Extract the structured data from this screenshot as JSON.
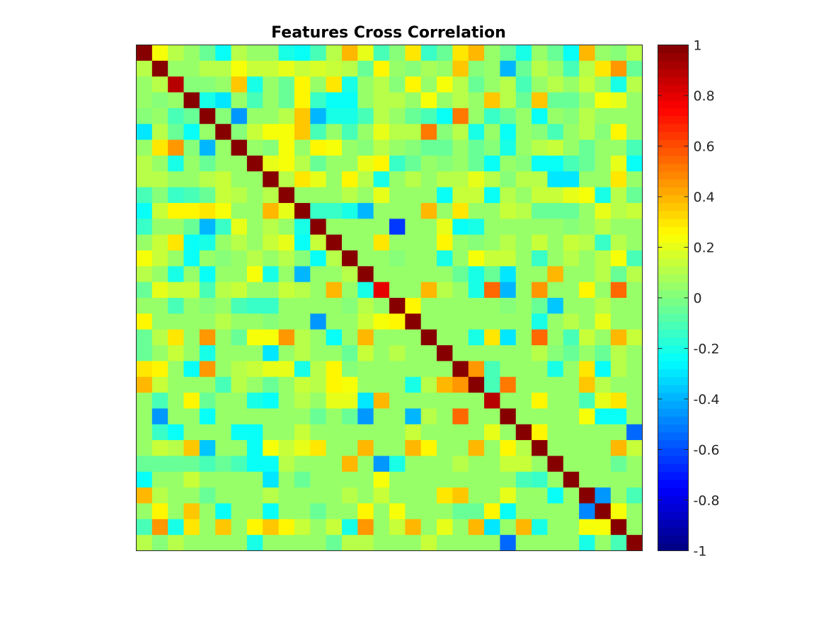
{
  "chart_data": {
    "type": "heatmap",
    "title": "Features Cross Correlation",
    "size": 32,
    "colormap": "jet",
    "clim": [
      -1,
      1
    ],
    "colorbar": {
      "ticks": [
        1,
        0.8,
        0.6,
        0.4,
        0.2,
        0,
        -0.2,
        -0.4,
        -0.6,
        -0.8,
        -1
      ],
      "tick_labels": [
        "1",
        "0.8",
        "0.6",
        "0.4",
        "0.2",
        "0",
        "-0.2",
        "-0.4",
        "-0.6",
        "-0.8",
        "-1"
      ]
    },
    "xticks": "none",
    "yticks": "none",
    "matrix": [
      [
        1.0,
        0.22,
        0.1,
        0.05,
        -0.05,
        -0.25,
        0.1,
        0.05,
        0.05,
        -0.2,
        -0.25,
        -0.1,
        0.1,
        0.38,
        0.2,
        -0.1,
        0.0,
        0.3,
        -0.15,
        -0.05,
        0.3,
        0.4,
        0.05,
        -0.05,
        -0.2,
        0.05,
        -0.05,
        -0.25,
        0.38,
        0.05,
        0.0,
        0.12
      ],
      [
        0.12,
        1.0,
        0.05,
        0.05,
        0.1,
        0.12,
        0.22,
        0.15,
        0.15,
        0.2,
        0.15,
        0.18,
        0.15,
        0.1,
        -0.05,
        0.25,
        0.05,
        0.0,
        0.08,
        0.05,
        0.35,
        0.0,
        0.05,
        -0.4,
        -0.05,
        0.12,
        0.05,
        -0.1,
        0.1,
        0.3,
        0.45,
        -0.05
      ],
      [
        0.05,
        0.1,
        0.9,
        0.0,
        0.0,
        0.05,
        0.35,
        -0.2,
        0.05,
        -0.05,
        0.25,
        0.05,
        0.3,
        -0.2,
        0.05,
        0.1,
        0.0,
        0.25,
        0.05,
        0.22,
        0.12,
        -0.05,
        0.05,
        0.12,
        -0.1,
        0.05,
        0.1,
        0.05,
        0.15,
        0.05,
        -0.2,
        0.12
      ],
      [
        0.05,
        0.0,
        0.05,
        1.0,
        -0.2,
        -0.3,
        0.05,
        -0.1,
        0.05,
        -0.05,
        0.25,
        -0.15,
        -0.25,
        -0.25,
        0.05,
        0.1,
        0.12,
        0.05,
        0.22,
        0.05,
        0.1,
        0.05,
        0.35,
        0.1,
        -0.05,
        0.35,
        -0.05,
        -0.05,
        0.05,
        0.22,
        0.2,
        0.05
      ],
      [
        0.0,
        0.05,
        -0.1,
        -0.05,
        1.0,
        0.0,
        -0.45,
        0.05,
        0.05,
        0.1,
        0.35,
        -0.4,
        -0.2,
        -0.2,
        -0.1,
        0.1,
        0.05,
        -0.05,
        -0.1,
        -0.25,
        0.5,
        0.05,
        -0.15,
        -0.05,
        0.05,
        -0.25,
        0.05,
        0.0,
        0.1,
        0.05,
        0.05,
        0.05
      ],
      [
        -0.3,
        0.1,
        -0.05,
        -0.25,
        0.05,
        1.0,
        0.0,
        0.15,
        0.22,
        0.22,
        0.35,
        -0.1,
        0.05,
        -0.1,
        0.05,
        0.2,
        0.12,
        0.1,
        0.5,
        0.0,
        0.1,
        -0.2,
        0.05,
        -0.25,
        0.05,
        0.0,
        -0.1,
        0.05,
        0.1,
        0.0,
        0.25,
        0.05
      ],
      [
        0.05,
        0.3,
        0.45,
        0.0,
        -0.4,
        0.05,
        1.0,
        0.05,
        0.0,
        0.22,
        0.05,
        0.25,
        0.22,
        0.05,
        0.0,
        0.1,
        0.05,
        0.0,
        -0.05,
        -0.05,
        0.05,
        -0.05,
        0.0,
        -0.2,
        0.05,
        0.1,
        0.15,
        0.05,
        -0.05,
        0.05,
        0.05,
        -0.1
      ],
      [
        0.1,
        0.05,
        -0.2,
        0.05,
        -0.05,
        0.05,
        0.05,
        1.0,
        0.2,
        0.22,
        0.1,
        -0.05,
        0.05,
        0.05,
        0.2,
        0.25,
        -0.15,
        -0.05,
        0.05,
        0.0,
        0.05,
        -0.05,
        -0.25,
        0.05,
        0.0,
        -0.25,
        -0.25,
        -0.1,
        -0.05,
        0.05,
        0.2,
        -0.25
      ],
      [
        0.1,
        0.1,
        0.05,
        0.05,
        0.1,
        0.15,
        0.05,
        0.05,
        1.0,
        0.1,
        0.3,
        0.2,
        0.05,
        0.25,
        0.1,
        -0.2,
        0.05,
        0.1,
        0.05,
        0.1,
        0.12,
        0.2,
        0.1,
        0.0,
        0.12,
        0.1,
        -0.3,
        -0.3,
        0.05,
        0.05,
        0.3,
        0.05
      ],
      [
        -0.1,
        0.0,
        -0.15,
        -0.1,
        -0.05,
        0.15,
        0.1,
        0.05,
        0.1,
        1.0,
        0.05,
        0.05,
        0.05,
        0.1,
        0.05,
        0.2,
        0.05,
        0.05,
        0.05,
        -0.25,
        0.15,
        0.15,
        -0.25,
        0.1,
        0.05,
        0.15,
        0.15,
        0.2,
        0.22,
        -0.2,
        0.1,
        -0.05
      ],
      [
        -0.25,
        0.15,
        0.25,
        0.25,
        0.3,
        0.22,
        0.05,
        0.05,
        0.38,
        0.2,
        1.0,
        -0.15,
        -0.15,
        -0.2,
        -0.4,
        0.05,
        0.05,
        0.05,
        0.38,
        0.05,
        0.3,
        0.05,
        0.05,
        0.15,
        0.1,
        -0.05,
        -0.05,
        -0.05,
        0.05,
        0.2,
        0.12,
        0.15
      ],
      [
        -0.15,
        0.05,
        0.05,
        -0.05,
        -0.4,
        -0.15,
        0.2,
        0.05,
        0.1,
        0.05,
        -0.2,
        1.0,
        0.05,
        0.05,
        0.05,
        0.05,
        -0.65,
        0.05,
        0.05,
        0.2,
        -0.25,
        -0.2,
        0.05,
        0.05,
        0.05,
        0.05,
        0.05,
        0.0,
        0.05,
        0.1,
        0.05,
        0.05
      ],
      [
        0.05,
        0.15,
        0.3,
        -0.25,
        -0.2,
        0.05,
        0.12,
        0.05,
        0.15,
        0.2,
        -0.25,
        0.15,
        1.0,
        0.05,
        0.05,
        0.3,
        0.05,
        0.05,
        0.05,
        0.25,
        0.05,
        0.0,
        0.05,
        0.1,
        0.05,
        0.15,
        0.05,
        0.15,
        0.1,
        -0.15,
        0.1,
        0.05
      ],
      [
        0.22,
        0.15,
        0.05,
        -0.25,
        0.05,
        0.0,
        0.05,
        0.1,
        0.05,
        0.1,
        0.0,
        -0.25,
        0.1,
        1.0,
        0.05,
        0.05,
        0.0,
        0.05,
        0.05,
        -0.2,
        0.05,
        0.22,
        0.15,
        0.15,
        0.05,
        -0.15,
        0.05,
        0.1,
        0.05,
        0.1,
        0.22,
        -0.1
      ],
      [
        0.12,
        0.05,
        -0.2,
        0.05,
        -0.25,
        0.05,
        0.05,
        0.22,
        -0.2,
        0.05,
        -0.4,
        0.05,
        0.05,
        0.1,
        1.0,
        0.05,
        0.05,
        0.05,
        0.05,
        0.05,
        -0.05,
        -0.2,
        -0.05,
        -0.3,
        0.05,
        0.05,
        0.38,
        0.05,
        0.05,
        0.1,
        -0.05,
        0.12
      ],
      [
        -0.05,
        0.2,
        0.15,
        0.15,
        -0.1,
        0.1,
        0.15,
        0.05,
        0.05,
        0.15,
        0.1,
        0.05,
        0.38,
        0.05,
        -0.2,
        0.8,
        0.05,
        0.05,
        0.38,
        0.1,
        0.05,
        -0.2,
        0.55,
        -0.4,
        0.05,
        0.45,
        0.05,
        0.05,
        0.25,
        0.05,
        0.55,
        0.05
      ],
      [
        0.05,
        0.05,
        -0.1,
        0.05,
        0.0,
        0.05,
        -0.1,
        -0.15,
        -0.15,
        0.05,
        0.05,
        0.05,
        0.05,
        0.0,
        0.12,
        0.05,
        1.0,
        0.25,
        0.05,
        0.05,
        0.05,
        0.05,
        0.05,
        0.0,
        0.05,
        -0.05,
        -0.35,
        0.05,
        0.05,
        0.1,
        0.05,
        0.05
      ],
      [
        0.25,
        0.05,
        0.05,
        0.05,
        0.05,
        0.12,
        0.05,
        0.05,
        0.0,
        0.05,
        0.05,
        -0.45,
        0.05,
        0.05,
        0.15,
        0.22,
        0.25,
        1.0,
        0.05,
        0.05,
        0.05,
        0.05,
        0.05,
        0.05,
        0.05,
        -0.2,
        0.05,
        0.1,
        0.05,
        0.2,
        0.05,
        0.05
      ],
      [
        -0.05,
        0.1,
        0.3,
        0.05,
        0.45,
        0.05,
        -0.05,
        0.22,
        0.22,
        0.45,
        0.1,
        0.05,
        -0.25,
        0.05,
        0.38,
        0.05,
        0.05,
        0.05,
        1.0,
        0.05,
        0.05,
        -0.2,
        0.3,
        -0.3,
        0.05,
        0.55,
        0.05,
        -0.1,
        0.15,
        0.05,
        0.38,
        0.15
      ],
      [
        -0.05,
        0.05,
        0.15,
        0.05,
        -0.2,
        0.05,
        0.05,
        0.05,
        -0.3,
        0.05,
        0.1,
        0.05,
        0.05,
        -0.05,
        0.15,
        0.05,
        0.1,
        0.05,
        0.05,
        1.0,
        0.05,
        0.05,
        0.05,
        0.05,
        0.05,
        0.12,
        0.0,
        -0.05,
        0.05,
        -0.05,
        0.1,
        0.05
      ],
      [
        0.3,
        0.25,
        0.05,
        -0.25,
        0.45,
        0.05,
        0.1,
        0.15,
        0.2,
        0.2,
        -0.2,
        0.1,
        0.25,
        0.0,
        0.05,
        0.05,
        0.05,
        0.05,
        0.05,
        0.05,
        1.0,
        0.45,
        -0.1,
        0.05,
        0.05,
        0.05,
        -0.2,
        0.05,
        0.3,
        -0.25,
        0.1,
        0.05
      ],
      [
        0.38,
        0.15,
        0.05,
        0.05,
        0.05,
        -0.1,
        0.1,
        0.05,
        -0.05,
        0.05,
        0.15,
        0.1,
        0.25,
        0.22,
        0.05,
        0.05,
        0.05,
        -0.2,
        0.1,
        0.38,
        0.45,
        1.0,
        -0.1,
        0.5,
        0.05,
        0.05,
        0.05,
        0.05,
        0.35,
        0.1,
        0.05,
        0.05
      ],
      [
        0.05,
        -0.1,
        0.05,
        0.25,
        -0.05,
        0.05,
        0.05,
        -0.2,
        -0.25,
        0.05,
        0.1,
        0.05,
        0.2,
        0.2,
        -0.3,
        0.38,
        0.05,
        0.05,
        0.05,
        0.05,
        0.05,
        0.05,
        0.9,
        0.05,
        0.05,
        0.25,
        0.05,
        0.05,
        -0.1,
        0.2,
        0.3,
        0.05
      ],
      [
        0.05,
        -0.45,
        0.05,
        0.05,
        -0.25,
        0.05,
        0.05,
        0.05,
        0.05,
        0.05,
        0.05,
        -0.05,
        0.05,
        -0.05,
        -0.45,
        0.05,
        0.05,
        -0.4,
        0.12,
        0.05,
        0.55,
        0.05,
        0.05,
        1.0,
        0.05,
        0.05,
        0.05,
        0.05,
        0.22,
        -0.25,
        -0.25,
        0.05
      ],
      [
        0.05,
        -0.15,
        -0.25,
        0.05,
        0.05,
        0.05,
        -0.25,
        -0.25,
        0.05,
        0.05,
        0.15,
        0.05,
        0.05,
        0.05,
        0.05,
        0.05,
        0.05,
        0.15,
        0.05,
        0.05,
        0.05,
        0.05,
        0.2,
        0.05,
        1.0,
        0.25,
        0.05,
        0.05,
        0.05,
        0.05,
        0.05,
        -0.55
      ],
      [
        0.05,
        0.15,
        0.1,
        0.35,
        -0.35,
        0.05,
        0.05,
        -0.25,
        0.22,
        0.15,
        0.2,
        0.3,
        0.05,
        0.05,
        0.38,
        0.05,
        0.05,
        0.4,
        0.25,
        0.05,
        0.05,
        0.38,
        0.05,
        0.25,
        0.1,
        1.0,
        0.05,
        0.05,
        0.05,
        0.05,
        0.4,
        0.15
      ],
      [
        -0.05,
        -0.05,
        -0.05,
        -0.05,
        -0.1,
        -0.05,
        -0.1,
        -0.25,
        -0.25,
        0.1,
        0.05,
        0.05,
        0.05,
        0.4,
        0.05,
        -0.45,
        -0.2,
        0.05,
        0.05,
        0.05,
        0.1,
        0.05,
        0.05,
        0.15,
        0.15,
        0.05,
        1.0,
        0.05,
        0.05,
        0.05,
        -0.05,
        0.05
      ],
      [
        -0.25,
        0.05,
        0.05,
        0.15,
        0.05,
        0.05,
        0.05,
        0.05,
        -0.3,
        0.05,
        -0.05,
        0.05,
        0.05,
        0.05,
        0.05,
        0.22,
        0.05,
        0.05,
        0.05,
        0.05,
        0.05,
        0.05,
        0.05,
        0.05,
        -0.1,
        -0.15,
        0.05,
        1.0,
        0.05,
        0.05,
        0.05,
        0.05
      ],
      [
        0.4,
        0.12,
        0.05,
        0.05,
        -0.05,
        0.05,
        0.05,
        0.05,
        0.12,
        0.05,
        0.05,
        0.05,
        0.05,
        0.1,
        0.05,
        0.15,
        0.05,
        0.05,
        0.05,
        0.3,
        0.35,
        0.05,
        0.05,
        0.2,
        0.05,
        0.05,
        -0.25,
        0.05,
        1.0,
        -0.45,
        0.05,
        -0.1
      ],
      [
        0.05,
        0.25,
        0.05,
        0.35,
        0.05,
        -0.25,
        0.05,
        0.05,
        -0.25,
        0.05,
        0.05,
        -0.05,
        0.05,
        0.05,
        0.25,
        0.05,
        0.22,
        0.05,
        0.05,
        0.05,
        -0.05,
        -0.05,
        0.25,
        -0.25,
        0.05,
        0.05,
        0.05,
        0.05,
        -0.5,
        1.0,
        0.22,
        0.05
      ],
      [
        -0.1,
        0.45,
        -0.2,
        0.3,
        0.05,
        0.35,
        0.05,
        0.25,
        0.35,
        0.25,
        0.15,
        0.05,
        0.15,
        -0.2,
        0.45,
        0.05,
        0.15,
        0.4,
        0.05,
        0.2,
        0.05,
        0.4,
        -0.3,
        0.05,
        0.4,
        -0.2,
        0.05,
        0.05,
        0.22,
        0.22,
        1.0,
        0.05
      ],
      [
        0.12,
        0.0,
        0.12,
        0.05,
        0.05,
        0.05,
        0.05,
        -0.2,
        0.05,
        0.05,
        0.05,
        0.05,
        -0.05,
        0.1,
        0.1,
        0.05,
        0.05,
        0.05,
        0.15,
        0.05,
        0.05,
        0.05,
        0.05,
        -0.55,
        0.05,
        0.05,
        0.05,
        0.05,
        -0.2,
        0.05,
        -0.1,
        1.0
      ]
    ]
  }
}
